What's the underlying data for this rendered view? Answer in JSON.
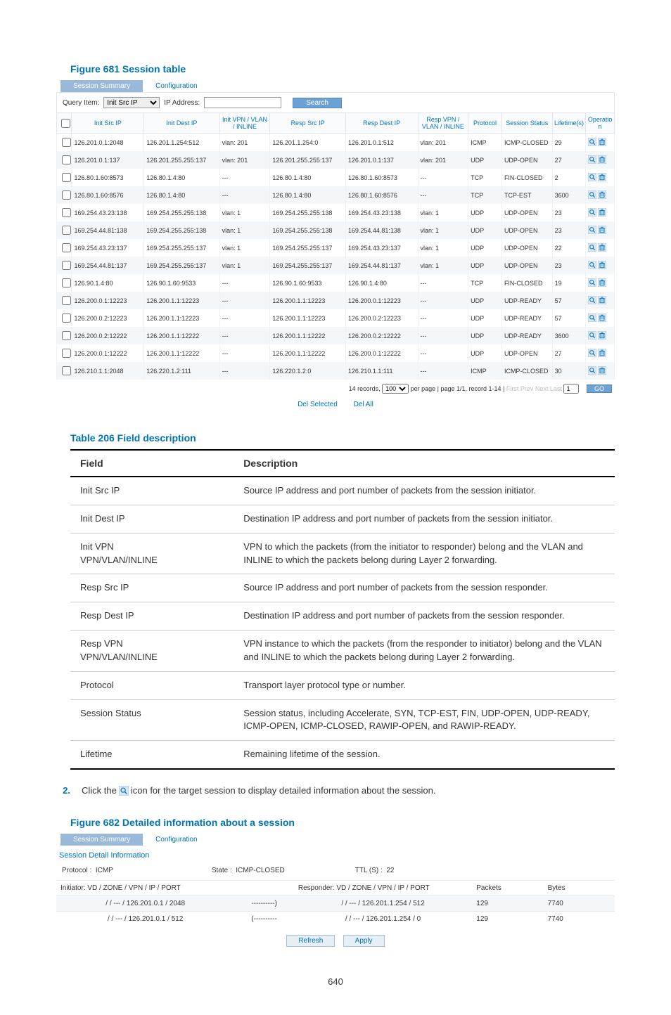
{
  "page_number": "640",
  "fig1": {
    "title": "Figure 681 Session table",
    "tabs": [
      "Session Summary",
      "Configuration"
    ],
    "query": {
      "label_item": "Query Item:",
      "select_value": "Init Src IP",
      "label_ip": "IP Address:",
      "ip_value": "",
      "btn_search": "Search"
    },
    "columns": [
      "",
      "Init Src IP",
      "Init Dest IP",
      "Init VPN / VLAN / INLINE",
      "Resp Src IP",
      "Resp Dest IP",
      "Resp VPN / VLAN / INLINE",
      "Protocol",
      "Session Status",
      "Lifetime(s)",
      "Operation"
    ],
    "rows": [
      [
        "126.201.0.1:2048",
        "126.201.1.254:512",
        "vlan: 201",
        "126.201.1.254:0",
        "126.201.0.1:512",
        "vlan: 201",
        "ICMP",
        "ICMP-CLOSED",
        "29"
      ],
      [
        "126.201.0.1:137",
        "126.201.255.255:137",
        "vlan: 201",
        "126.201.255.255:137",
        "126.201.0.1:137",
        "vlan: 201",
        "UDP",
        "UDP-OPEN",
        "27"
      ],
      [
        "126.80.1.60:8573",
        "126.80.1.4:80",
        "---",
        "126.80.1.4:80",
        "126.80.1.60:8573",
        "---",
        "TCP",
        "FIN-CLOSED",
        "2"
      ],
      [
        "126.80.1.60:8576",
        "126.80.1.4:80",
        "---",
        "126.80.1.4:80",
        "126.80.1.60:8576",
        "---",
        "TCP",
        "TCP-EST",
        "3600"
      ],
      [
        "169.254.43.23:138",
        "169.254.255.255:138",
        "vlan: 1",
        "169.254.255.255:138",
        "169.254.43.23:138",
        "vlan: 1",
        "UDP",
        "UDP-OPEN",
        "23"
      ],
      [
        "169.254.44.81:138",
        "169.254.255.255:138",
        "vlan: 1",
        "169.254.255.255:138",
        "169.254.44.81:138",
        "vlan: 1",
        "UDP",
        "UDP-OPEN",
        "23"
      ],
      [
        "169.254.43.23:137",
        "169.254.255.255:137",
        "vlan: 1",
        "169.254.255.255:137",
        "169.254.43.23:137",
        "vlan: 1",
        "UDP",
        "UDP-OPEN",
        "22"
      ],
      [
        "169.254.44.81:137",
        "169.254.255.255:137",
        "vlan: 1",
        "169.254.255.255:137",
        "169.254.44.81:137",
        "vlan: 1",
        "UDP",
        "UDP-OPEN",
        "23"
      ],
      [
        "126.90.1.4:80",
        "126.90.1.60:9533",
        "---",
        "126.90.1.60:9533",
        "126.90.1.4:80",
        "---",
        "TCP",
        "FIN-CLOSED",
        "19"
      ],
      [
        "126.200.0.1:12223",
        "126.200.1.1:12223",
        "---",
        "126.200.1.1:12223",
        "126.200.0.1:12223",
        "---",
        "UDP",
        "UDP-READY",
        "57"
      ],
      [
        "126.200.0.2:12223",
        "126.200.1.1:12223",
        "---",
        "126.200.1.1:12223",
        "126.200.0.2:12223",
        "---",
        "UDP",
        "UDP-READY",
        "57"
      ],
      [
        "126.200.0.2:12222",
        "126.200.1.1:12222",
        "---",
        "126.200.1.1:12222",
        "126.200.0.2:12222",
        "---",
        "UDP",
        "UDP-READY",
        "3600"
      ],
      [
        "126.200.0.1:12222",
        "126.200.1.1:12222",
        "---",
        "126.200.1.1:12222",
        "126.200.0.1:12222",
        "---",
        "UDP",
        "UDP-OPEN",
        "27"
      ],
      [
        "126.210.1.1:2048",
        "126.220.1.2:111",
        "---",
        "126.220.1.2:0",
        "126.210.1.1:111",
        "---",
        "ICMP",
        "ICMP-CLOSED",
        "30"
      ]
    ],
    "pager": {
      "records": "14 records,",
      "select_value": "100",
      "per_page": "per page | page 1/1, record 1-14 |",
      "links": "First Prev Next Last",
      "input_value": "1",
      "btn_go": "GO"
    },
    "link_del_sel": "Del Selected",
    "link_del_all": "Del All"
  },
  "table206": {
    "title": "Table 206 Field description",
    "head_field": "Field",
    "head_desc": "Description",
    "rows": [
      [
        "Init Src IP",
        "Source IP address and port number of packets from the session initiator."
      ],
      [
        "Init Dest IP",
        "Destination IP address and port number of packets from the session initiator."
      ],
      [
        "Init VPN VPN/VLAN/INLINE",
        "VPN to which the packets (from the initiator to responder) belong and the VLAN and INLINE to which the packets belong during Layer 2 forwarding."
      ],
      [
        "Resp Src IP",
        "Source IP address and port number of packets from the session responder."
      ],
      [
        "Resp Dest IP",
        "Destination IP address and port number of packets from the session responder."
      ],
      [
        "Resp VPN VPN/VLAN/INLINE",
        "VPN instance to which the packets (from the responder to initiator) belong and the VLAN and INLINE to which the packets belong during Layer 2 forwarding."
      ],
      [
        "Protocol",
        "Transport layer protocol type or number."
      ],
      [
        "Session Status",
        "Session status, including Accelerate, SYN, TCP-EST, FIN, UDP-OPEN, UDP-READY, ICMP-OPEN, ICMP-CLOSED, RAWIP-OPEN, and RAWIP-READY."
      ],
      [
        "Lifetime",
        "Remaining lifetime of the session."
      ]
    ]
  },
  "step2": {
    "num": "2.",
    "text_a": "Click the ",
    "text_b": " icon for the target session to display detailed information about the session."
  },
  "fig2": {
    "title": "Figure 682 Detailed information about a session",
    "tabs": [
      "Session Summary",
      "Configuration"
    ],
    "heading": "Session Detail Information",
    "row1": {
      "lbl_proto": "Protocol :",
      "proto": "ICMP",
      "lbl_state": "State :",
      "state": "ICMP-CLOSED",
      "lbl_ttl": "TTL (S) :",
      "ttl": "22"
    },
    "head_init": "Initiator: VD / ZONE / VPN / IP / PORT",
    "head_resp": "Responder: VD / ZONE / VPN / IP / PORT",
    "head_pkts": "Packets",
    "head_bytes": "Bytes",
    "row_a": [
      "/ / --- / 126.201.0.1 / 2048",
      "----------)",
      "/ / --- / 126.201.1.254 / 512",
      "129",
      "7740"
    ],
    "row_b": [
      "/ / --- / 126.201.0.1 / 512",
      "(----------",
      "/ / --- / 126.201.1.254 / 0",
      "129",
      "7740"
    ],
    "btn_refresh": "Refresh",
    "btn_apply": "Apply"
  }
}
